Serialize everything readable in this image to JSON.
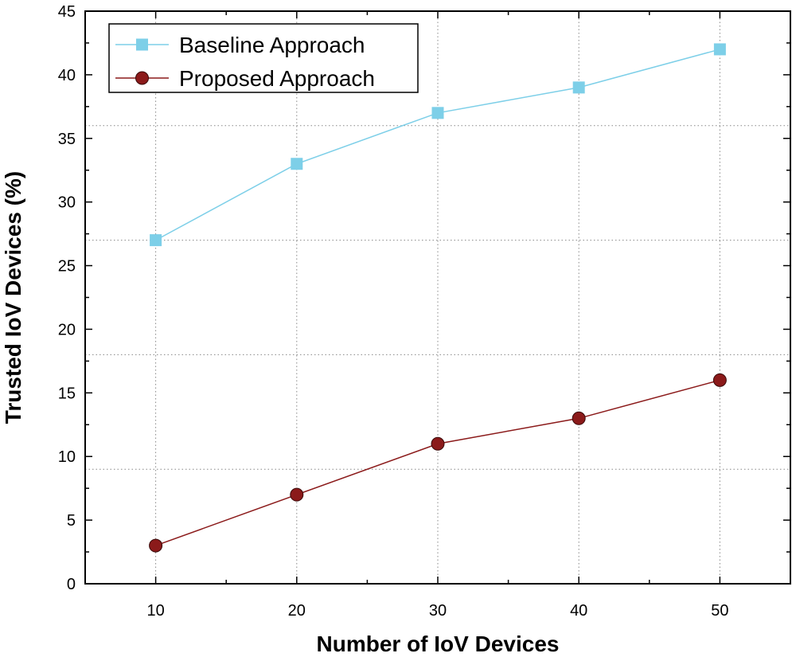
{
  "chart_data": {
    "type": "line",
    "xlabel": "Number of IoV Devices",
    "ylabel": "Trusted IoV Devices (%)",
    "x": [
      10,
      20,
      30,
      40,
      50
    ],
    "xlim": [
      5,
      55
    ],
    "ylim": [
      0,
      45
    ],
    "xticks": [
      10,
      20,
      30,
      40,
      50
    ],
    "yticks": [
      0,
      5,
      10,
      15,
      20,
      25,
      30,
      35,
      40,
      45
    ],
    "grid": true,
    "legend_position": "top-left",
    "series": [
      {
        "name": "Baseline Approach",
        "values": [
          27,
          33,
          37,
          39,
          42
        ],
        "color": "#7dcfe8",
        "marker": "square"
      },
      {
        "name": "Proposed Approach",
        "values": [
          3,
          7,
          11,
          13,
          16
        ],
        "color": "#8b1a1a",
        "marker": "circle"
      }
    ]
  }
}
